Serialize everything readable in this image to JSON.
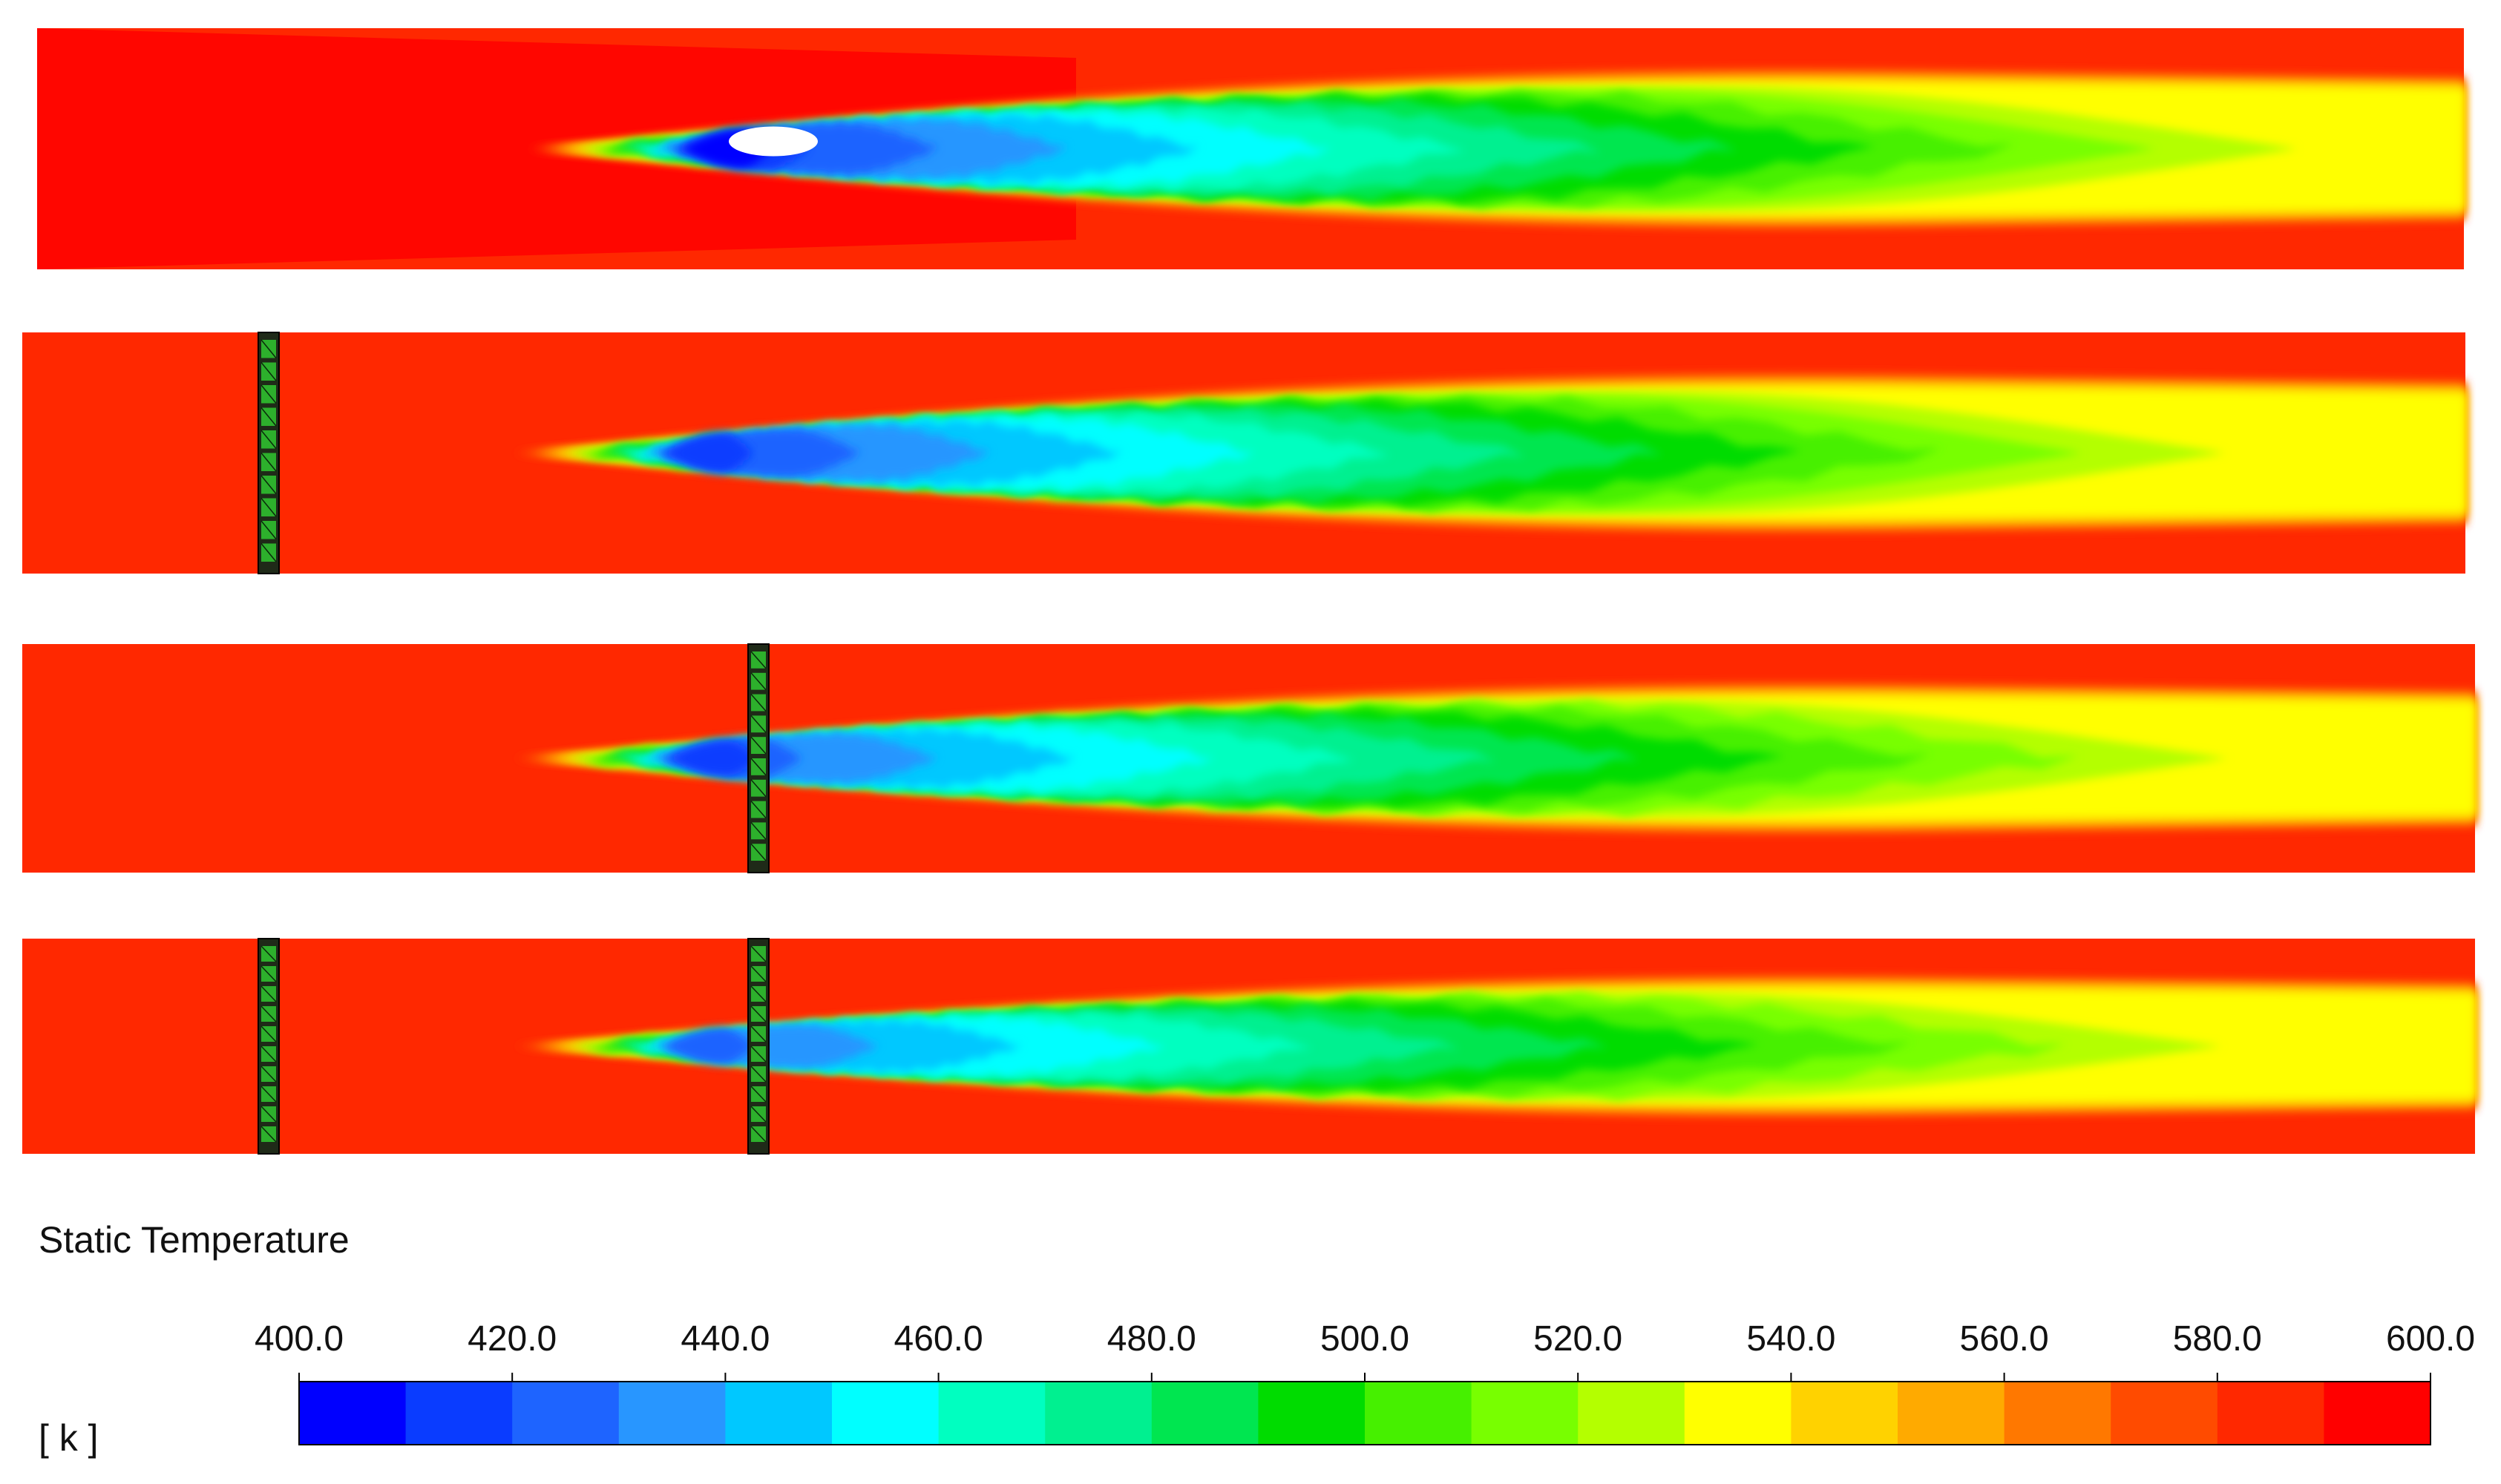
{
  "legend": {
    "title": "Static Temperature",
    "unit": "[ k ]",
    "tick_labels": [
      "400.0",
      "420.0",
      "440.0",
      "460.0",
      "480.0",
      "500.0",
      "520.0",
      "540.0",
      "560.0",
      "580.0",
      "600.0"
    ]
  },
  "chart_data": {
    "type": "heatmap",
    "title": "Static Temperature",
    "colorbar": {
      "label": "[ k ]",
      "min": 400.0,
      "max": 600.0,
      "ticks": [
        400,
        420,
        440,
        460,
        480,
        500,
        520,
        540,
        560,
        580,
        600
      ],
      "bands": 20,
      "band_colors": [
        "#0000ff",
        "#0a3cff",
        "#1e64ff",
        "#2896ff",
        "#00c8ff",
        "#00ffff",
        "#00ffc0",
        "#00f090",
        "#00e650",
        "#00dc00",
        "#46f000",
        "#78ff00",
        "#b4ff00",
        "#ffff00",
        "#ffd200",
        "#ffaa00",
        "#ff7800",
        "#ff4b00",
        "#ff2800",
        "#ff0000"
      ]
    },
    "panels": [
      {
        "panel": 1,
        "ambient_temperature": 580,
        "core_min_temperature": 400,
        "outlet_core_temperature": 525,
        "blocks": []
      },
      {
        "panel": 2,
        "ambient_temperature": 585,
        "core_min_temperature": 410,
        "outlet_core_temperature": 535,
        "blocks": [
          "upstream"
        ]
      },
      {
        "panel": 3,
        "ambient_temperature": 585,
        "core_min_temperature": 415,
        "outlet_core_temperature": 535,
        "blocks": [
          "mid"
        ]
      },
      {
        "panel": 4,
        "ambient_temperature": 585,
        "core_min_temperature": 420,
        "outlet_core_temperature": 535,
        "blocks": [
          "upstream",
          "mid"
        ]
      }
    ]
  }
}
